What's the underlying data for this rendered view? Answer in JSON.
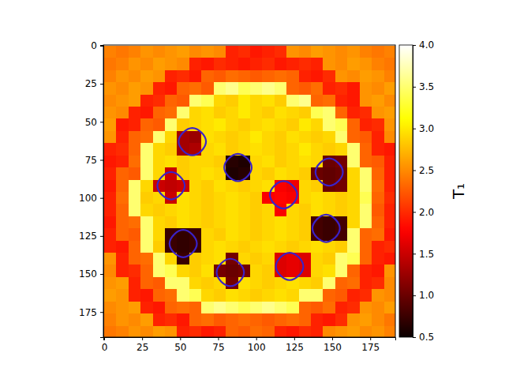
{
  "chart_data": {
    "type": "heatmap",
    "x": [
      4,
      12,
      20,
      28,
      36,
      44,
      52,
      60,
      68,
      76,
      84,
      92,
      100,
      108,
      116,
      124,
      132,
      140,
      148,
      156,
      164,
      172,
      180,
      188
    ],
    "y": [
      4,
      12,
      20,
      28,
      36,
      44,
      52,
      60,
      68,
      76,
      84,
      92,
      100,
      108,
      116,
      124,
      132,
      140,
      148,
      156,
      164,
      172,
      180,
      188
    ],
    "values": [
      [
        2.45,
        2.4,
        2.45,
        2.55,
        2.5,
        2.55,
        2.6,
        2.5,
        2.55,
        2.5,
        1.95,
        2.0,
        1.9,
        1.95,
        2.0,
        2.55,
        2.5,
        2.6,
        2.55,
        2.5,
        2.55,
        2.45,
        2.4,
        2.45
      ],
      [
        2.4,
        2.45,
        2.55,
        2.5,
        2.6,
        2.55,
        2.5,
        1.95,
        1.9,
        2.0,
        1.95,
        1.9,
        1.95,
        2.0,
        1.9,
        1.95,
        2.0,
        1.95,
        2.55,
        2.5,
        2.6,
        2.55,
        2.45,
        2.4
      ],
      [
        2.45,
        2.55,
        2.5,
        2.6,
        2.55,
        1.95,
        2.0,
        1.9,
        2.3,
        2.25,
        2.35,
        2.3,
        2.25,
        2.3,
        2.35,
        2.3,
        1.95,
        1.9,
        2.0,
        2.55,
        2.5,
        2.6,
        2.55,
        2.45
      ],
      [
        2.55,
        2.5,
        2.6,
        2.55,
        1.95,
        1.9,
        2.3,
        2.35,
        2.25,
        3.5,
        3.6,
        3.4,
        3.5,
        3.6,
        3.5,
        2.3,
        2.25,
        2.35,
        1.95,
        2.0,
        1.9,
        2.55,
        2.5,
        2.6
      ],
      [
        2.5,
        2.55,
        2.6,
        1.95,
        2.0,
        2.3,
        2.25,
        3.5,
        3.4,
        2.9,
        2.85,
        3.0,
        2.9,
        2.95,
        2.85,
        3.5,
        3.6,
        2.3,
        2.35,
        1.95,
        1.9,
        2.55,
        2.6,
        2.5
      ],
      [
        2.55,
        2.5,
        1.95,
        1.9,
        2.3,
        2.35,
        3.5,
        2.9,
        2.95,
        2.85,
        2.9,
        3.0,
        2.9,
        2.85,
        2.95,
        2.9,
        2.85,
        3.4,
        3.5,
        2.3,
        1.95,
        2.0,
        2.55,
        2.6
      ],
      [
        2.6,
        1.9,
        1.95,
        2.3,
        2.25,
        3.5,
        2.85,
        2.9,
        2.95,
        3.0,
        2.9,
        2.85,
        2.9,
        2.95,
        2.9,
        2.85,
        3.0,
        2.9,
        3.5,
        3.4,
        2.3,
        1.95,
        2.0,
        2.55
      ],
      [
        2.55,
        1.95,
        2.3,
        2.35,
        3.5,
        2.9,
        1.3,
        1.25,
        2.95,
        2.9,
        2.85,
        2.9,
        3.0,
        2.9,
        2.85,
        2.95,
        2.9,
        2.85,
        2.9,
        3.5,
        2.3,
        2.25,
        1.95,
        2.5
      ],
      [
        1.95,
        2.0,
        2.3,
        3.5,
        2.9,
        2.85,
        1.3,
        1.35,
        2.9,
        2.95,
        2.85,
        2.9,
        2.95,
        2.9,
        2.85,
        2.9,
        3.0,
        2.9,
        2.85,
        2.9,
        3.5,
        2.3,
        1.95,
        1.9
      ],
      [
        1.9,
        1.95,
        2.35,
        3.5,
        2.9,
        2.95,
        2.85,
        2.9,
        2.9,
        2.85,
        0.65,
        0.6,
        2.9,
        2.95,
        2.85,
        2.9,
        2.95,
        2.9,
        1.0,
        1.05,
        3.5,
        2.3,
        2.25,
        1.95
      ],
      [
        1.95,
        2.3,
        2.25,
        3.5,
        2.9,
        1.5,
        2.85,
        2.9,
        2.95,
        2.9,
        0.6,
        0.65,
        2.9,
        2.85,
        2.95,
        2.9,
        2.85,
        1.0,
        0.95,
        1.0,
        2.9,
        3.5,
        2.3,
        1.95
      ],
      [
        1.9,
        2.3,
        3.5,
        2.9,
        1.5,
        1.45,
        1.5,
        2.9,
        2.85,
        2.95,
        2.9,
        2.85,
        2.9,
        2.95,
        1.75,
        1.7,
        2.9,
        2.85,
        1.0,
        1.05,
        2.9,
        3.5,
        2.35,
        1.95
      ],
      [
        1.95,
        2.35,
        3.5,
        2.85,
        2.9,
        1.5,
        2.95,
        2.9,
        2.85,
        2.9,
        2.95,
        2.9,
        2.85,
        1.75,
        1.8,
        1.75,
        2.9,
        2.95,
        2.9,
        2.85,
        2.9,
        3.4,
        2.3,
        2.0
      ],
      [
        1.95,
        2.3,
        3.5,
        2.9,
        2.85,
        2.9,
        2.95,
        2.9,
        2.85,
        2.9,
        2.95,
        2.9,
        2.85,
        2.9,
        1.75,
        2.9,
        2.85,
        2.95,
        2.9,
        2.85,
        2.9,
        3.5,
        2.25,
        1.95
      ],
      [
        1.9,
        2.3,
        2.35,
        3.5,
        2.9,
        2.85,
        2.95,
        2.9,
        2.85,
        2.9,
        2.95,
        2.9,
        2.85,
        2.9,
        2.95,
        2.9,
        2.85,
        0.8,
        0.75,
        0.8,
        2.9,
        3.5,
        2.3,
        1.95
      ],
      [
        1.95,
        2.3,
        2.25,
        3.5,
        2.9,
        0.75,
        0.7,
        0.75,
        2.9,
        2.85,
        2.95,
        2.9,
        2.85,
        2.9,
        2.95,
        2.9,
        2.85,
        0.8,
        0.75,
        0.8,
        3.5,
        2.3,
        2.35,
        1.9
      ],
      [
        1.95,
        1.9,
        2.3,
        3.5,
        2.85,
        0.75,
        0.7,
        0.75,
        2.9,
        2.95,
        2.9,
        2.85,
        2.9,
        2.95,
        2.9,
        2.85,
        2.9,
        2.95,
        2.9,
        2.85,
        3.5,
        2.3,
        1.95,
        2.0
      ],
      [
        2.55,
        1.95,
        2.3,
        2.35,
        3.5,
        2.9,
        0.75,
        2.85,
        2.9,
        2.95,
        1.05,
        2.9,
        2.85,
        2.9,
        1.6,
        1.65,
        1.6,
        2.9,
        2.85,
        3.5,
        3.4,
        2.3,
        1.95,
        1.9
      ],
      [
        2.5,
        1.95,
        2.0,
        2.3,
        3.5,
        3.4,
        2.9,
        2.85,
        2.95,
        1.05,
        1.0,
        1.05,
        2.9,
        2.85,
        1.6,
        1.65,
        1.6,
        2.9,
        2.95,
        3.5,
        2.3,
        1.95,
        1.9,
        2.55
      ],
      [
        2.55,
        2.6,
        1.95,
        2.3,
        2.25,
        3.5,
        3.5,
        2.9,
        2.85,
        2.9,
        1.05,
        2.95,
        2.9,
        2.85,
        2.9,
        2.95,
        2.9,
        2.85,
        3.5,
        2.3,
        2.35,
        1.95,
        2.0,
        2.5
      ],
      [
        2.6,
        2.55,
        1.95,
        1.9,
        2.3,
        2.35,
        3.5,
        3.4,
        2.9,
        2.85,
        2.95,
        2.9,
        2.85,
        2.9,
        2.95,
        2.9,
        3.5,
        3.5,
        2.3,
        2.25,
        1.95,
        2.0,
        2.55,
        2.5
      ],
      [
        2.5,
        2.55,
        2.6,
        1.95,
        1.9,
        2.3,
        2.35,
        2.3,
        3.5,
        3.6,
        3.5,
        3.4,
        3.5,
        3.6,
        3.5,
        3.4,
        2.3,
        2.25,
        2.35,
        1.95,
        2.0,
        2.55,
        2.5,
        2.6
      ],
      [
        2.45,
        2.55,
        2.5,
        2.6,
        1.95,
        2.0,
        1.9,
        2.3,
        2.35,
        2.25,
        2.3,
        2.35,
        2.3,
        2.25,
        2.3,
        2.35,
        2.3,
        1.95,
        1.9,
        2.0,
        2.55,
        2.6,
        2.5,
        2.4
      ],
      [
        2.4,
        2.45,
        2.55,
        2.5,
        2.6,
        2.55,
        1.95,
        2.0,
        1.9,
        1.95,
        2.3,
        2.25,
        2.35,
        2.3,
        1.95,
        1.9,
        2.0,
        1.95,
        2.5,
        2.55,
        2.6,
        2.5,
        2.55,
        2.45
      ]
    ],
    "xlim": [
      -0.5,
      191.5
    ],
    "ylim": [
      191.5,
      -0.5
    ],
    "xticks": [
      0,
      25,
      50,
      75,
      100,
      125,
      150,
      175
    ],
    "yticks": [
      0,
      25,
      50,
      75,
      100,
      125,
      150,
      175
    ],
    "colorbar": {
      "range": [
        0.5,
        4.0
      ],
      "ticks": [
        0.5,
        {
          "value": 1,
          "label": "1.0"
        },
        1.5,
        {
          "value": 2,
          "label": "2.0"
        },
        2.5,
        {
          "value": 3,
          "label": "3.0"
        },
        3.5,
        {
          "value": 4,
          "label": "4.0"
        }
      ],
      "label": "T₁"
    },
    "contours": [
      {
        "x": [
          67,
          64,
          58,
          52,
          49,
          52,
          58,
          64
        ],
        "y": [
          63,
          69,
          72,
          69,
          63,
          57,
          54,
          57
        ]
      },
      {
        "x": [
          97,
          94,
          88,
          82,
          79,
          82,
          88,
          94
        ],
        "y": [
          80,
          86,
          89,
          86,
          80,
          74,
          71,
          74
        ]
      },
      {
        "x": [
          53,
          50,
          44,
          38,
          35,
          38,
          44,
          50
        ],
        "y": [
          92,
          98,
          101,
          98,
          92,
          86,
          83,
          86
        ]
      },
      {
        "x": [
          127,
          124,
          118,
          112,
          109,
          112,
          118,
          124
        ],
        "y": [
          98,
          104,
          107,
          104,
          98,
          92,
          89,
          92
        ]
      },
      {
        "x": [
          157,
          154,
          148,
          142,
          139,
          142,
          148,
          154
        ],
        "y": [
          83,
          89,
          92,
          89,
          83,
          77,
          74,
          77
        ]
      },
      {
        "x": [
          155,
          152,
          146,
          140,
          137,
          140,
          146,
          152
        ],
        "y": [
          120,
          126,
          129,
          126,
          120,
          114,
          111,
          114
        ]
      },
      {
        "x": [
          61,
          58,
          52,
          46,
          43,
          46,
          52,
          58
        ],
        "y": [
          130,
          136,
          139,
          136,
          130,
          124,
          121,
          124
        ]
      },
      {
        "x": [
          92,
          89,
          83,
          77,
          74,
          77,
          83,
          89
        ],
        "y": [
          149,
          155,
          158,
          155,
          149,
          143,
          140,
          143
        ]
      },
      {
        "x": [
          131,
          128,
          122,
          116,
          113,
          116,
          122,
          128
        ],
        "y": [
          145,
          151,
          154,
          151,
          145,
          139,
          136,
          139
        ]
      }
    ]
  }
}
